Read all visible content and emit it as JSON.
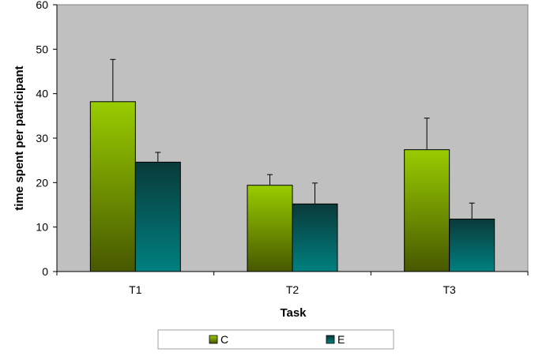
{
  "chart_data": {
    "type": "bar",
    "categories": [
      "T1",
      "T2",
      "T3"
    ],
    "series": [
      {
        "name": "C",
        "values": [
          38.2,
          19.4,
          27.4
        ],
        "errors": [
          9.5,
          2.4,
          7.1
        ]
      },
      {
        "name": "E",
        "values": [
          24.6,
          15.2,
          11.8
        ],
        "errors": [
          2.2,
          4.7,
          3.6
        ]
      }
    ],
    "title": "",
    "xlabel": "Task",
    "ylabel": "time spent per participant",
    "ylim": [
      0,
      60
    ],
    "yticks": [
      0,
      10,
      20,
      30,
      40,
      50,
      60
    ],
    "grid": false,
    "legend": "bottom",
    "colors": {
      "plot_background": "#c0c0c0",
      "C": "#99cc00",
      "E": "#008080"
    }
  }
}
